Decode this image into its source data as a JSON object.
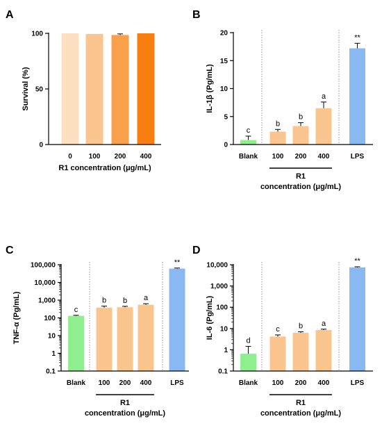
{
  "chart_data": [
    {
      "type": "bar",
      "panel": "A",
      "categories": [
        "0",
        "100",
        "200",
        "400"
      ],
      "values": [
        100,
        99.5,
        98.5,
        100
      ],
      "errors": [
        0,
        0,
        1.0,
        0
      ],
      "colors": [
        "#fde0c2",
        "#fbc590",
        "#f9a04a",
        "#f77f0f"
      ],
      "ylabel": "Survival (%)",
      "xlabel": "R1 concentration (μg/mL)",
      "yscale": "linear",
      "ylim": [
        0,
        100
      ],
      "yticks": [
        0,
        50,
        100
      ],
      "ytick_labels": [
        "0",
        "50",
        "100"
      ]
    },
    {
      "type": "bar",
      "panel": "B",
      "categories": [
        "Blank",
        "100",
        "200",
        "400",
        "LPS"
      ],
      "values": [
        0.8,
        2.3,
        3.3,
        6.5,
        17.2
      ],
      "errors": [
        0.7,
        0.4,
        0.6,
        1.1,
        0.9
      ],
      "colors": [
        "#90ee90",
        "#fbc590",
        "#fbc590",
        "#fbc590",
        "#8ab8f0"
      ],
      "annotations": [
        "c",
        "b",
        "b",
        "a",
        "**"
      ],
      "ylabel": "IL-1β (Pg/mL)",
      "group_label_line1": "R1",
      "group_label_line2": "concentration (μg/mL)",
      "yscale": "linear",
      "ylim": [
        0,
        20
      ],
      "yticks": [
        0,
        5,
        10,
        15,
        20
      ],
      "ytick_labels": [
        "0",
        "5",
        "10",
        "15",
        "20"
      ]
    },
    {
      "type": "bar",
      "panel": "C",
      "categories": [
        "Blank",
        "100",
        "200",
        "400",
        "LPS"
      ],
      "values": [
        130,
        380,
        400,
        550,
        60000
      ],
      "errors": [
        10,
        80,
        50,
        80,
        5000
      ],
      "colors": [
        "#90ee90",
        "#fbc590",
        "#fbc590",
        "#fbc590",
        "#8ab8f0"
      ],
      "annotations": [
        "c",
        "b",
        "b",
        "a",
        "**"
      ],
      "ylabel": "TNF-α (Pg/mL)",
      "group_label_line1": "R1",
      "group_label_line2": "concentration (μg/mL)",
      "yscale": "log",
      "ylim": [
        0.1,
        100000
      ],
      "yticks": [
        0.1,
        1,
        10,
        100,
        1000,
        10000,
        100000
      ],
      "ytick_labels": [
        "0.1",
        "1",
        "10",
        "100",
        "1,000",
        "10,000",
        "100,000"
      ]
    },
    {
      "type": "bar",
      "panel": "D",
      "categories": [
        "Blank",
        "100",
        "200",
        "400",
        "LPS"
      ],
      "values": [
        0.65,
        4.2,
        6.3,
        8.5,
        7500
      ],
      "errors": [
        0.8,
        0.8,
        0.7,
        0.8,
        500
      ],
      "colors": [
        "#90ee90",
        "#fbc590",
        "#fbc590",
        "#fbc590",
        "#8ab8f0"
      ],
      "annotations": [
        "d",
        "c",
        "b",
        "a",
        "**"
      ],
      "ylabel": "IL-6 (Pg/mL)",
      "group_label_line1": "R1",
      "group_label_line2": "concentration (μg/mL)",
      "yscale": "log",
      "ylim": [
        0.1,
        10000
      ],
      "yticks": [
        0.1,
        1,
        10,
        100,
        1000,
        10000
      ],
      "ytick_labels": [
        "0.1",
        "1",
        "10",
        "100",
        "1,000",
        "10,000"
      ]
    }
  ]
}
